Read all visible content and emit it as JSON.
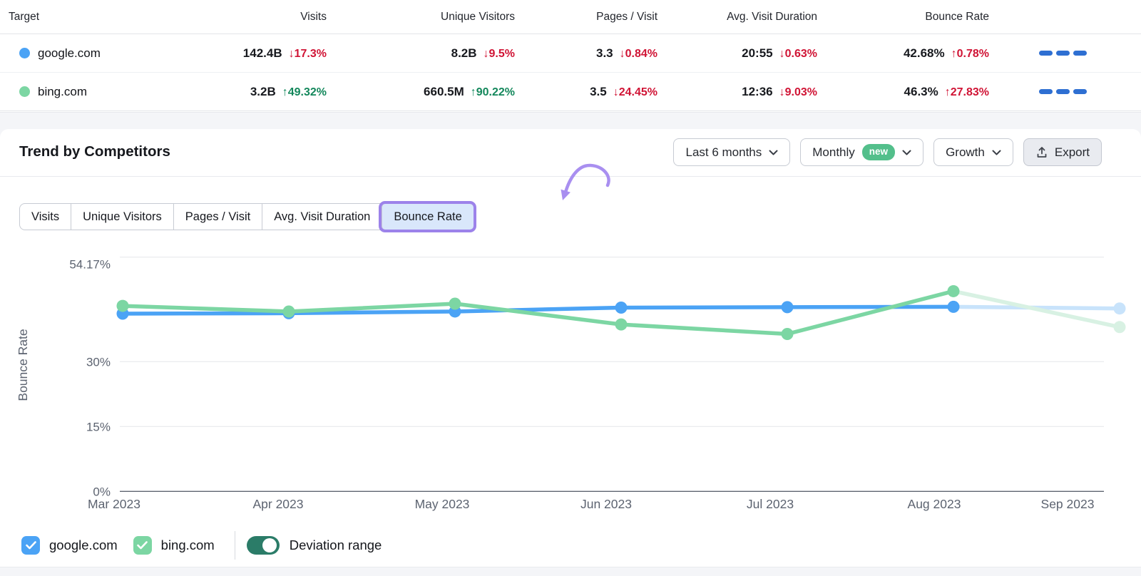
{
  "colors": {
    "google_blue": "#4BA3F5",
    "bing_green": "#7CD6A3",
    "google_blue_faded": "#C8E3FB",
    "bing_green_faded": "#D8F1E3",
    "negative_red": "#D01435",
    "positive_green": "#13875B",
    "highlight_purple": "#9C82EA",
    "annotation_purple": "#A98FF0",
    "badge_green": "#53BF8B",
    "toggle_teal": "#2B7C68",
    "dashes_blue": "#2E6FD2"
  },
  "table": {
    "headers": [
      "Target",
      "Visits",
      "Unique Visitors",
      "Pages / Visit",
      "Avg. Visit Duration",
      "Bounce Rate"
    ],
    "rows": [
      {
        "target": "google.com",
        "cells": [
          {
            "value": "142.4B",
            "change": "↓17.3%",
            "sentiment": "negative"
          },
          {
            "value": "8.2B",
            "change": "↓9.5%",
            "sentiment": "negative"
          },
          {
            "value": "3.3",
            "change": "↓0.84%",
            "sentiment": "negative"
          },
          {
            "value": "20:55",
            "change": "↓0.63%",
            "sentiment": "negative"
          },
          {
            "value": "42.68%",
            "change": "↑0.78%",
            "sentiment": "negative"
          }
        ]
      },
      {
        "target": "bing.com",
        "cells": [
          {
            "value": "3.2B",
            "change": "↑49.32%",
            "sentiment": "positive"
          },
          {
            "value": "660.5M",
            "change": "↑90.22%",
            "sentiment": "positive"
          },
          {
            "value": "3.5",
            "change": "↓24.45%",
            "sentiment": "negative"
          },
          {
            "value": "12:36",
            "change": "↓9.03%",
            "sentiment": "negative"
          },
          {
            "value": "46.3%",
            "change": "↑27.83%",
            "sentiment": "negative"
          }
        ]
      }
    ]
  },
  "section": {
    "title": "Trend by Competitors",
    "date_range_label": "Last 6 months",
    "granularity_label": "Monthly",
    "granularity_badge": "new",
    "mode_label": "Growth",
    "export_label": "Export"
  },
  "tabs": {
    "items": [
      "Visits",
      "Unique Visitors",
      "Pages / Visit",
      "Avg. Visit Duration",
      "Bounce Rate"
    ],
    "active": "Bounce Rate"
  },
  "chart_data": {
    "type": "line",
    "x": [
      "Mar 2023",
      "Apr 2023",
      "May 2023",
      "Jun 2023",
      "Jul 2023",
      "Aug 2023",
      "Sep 2023"
    ],
    "ylabel": "Bounce Rate",
    "ylim": [
      0,
      54.17
    ],
    "yticks": [
      0,
      15,
      30,
      54.17
    ],
    "ytick_labels": [
      "0%",
      "15%",
      "30%",
      "54.17%"
    ],
    "grid": true,
    "legend_position": "bottom",
    "series": [
      {
        "name": "google.com",
        "color": "#4BA3F5",
        "faded_color": "#C8E3FB",
        "values": [
          41.1,
          41.2,
          41.6,
          42.5,
          42.6,
          42.68,
          42.3
        ],
        "last_month_partial": true
      },
      {
        "name": "bing.com",
        "color": "#7CD6A3",
        "faded_color": "#D8F1E3",
        "values": [
          42.9,
          41.6,
          43.4,
          38.6,
          36.4,
          46.3,
          38.0
        ],
        "last_month_partial": true
      }
    ]
  },
  "legend": {
    "items": [
      {
        "label": "google.com",
        "color": "#4BA3F5",
        "checked": true
      },
      {
        "label": "bing.com",
        "color": "#7CD6A3",
        "checked": true
      }
    ],
    "toggle_label": "Deviation range",
    "toggle_on": true
  }
}
